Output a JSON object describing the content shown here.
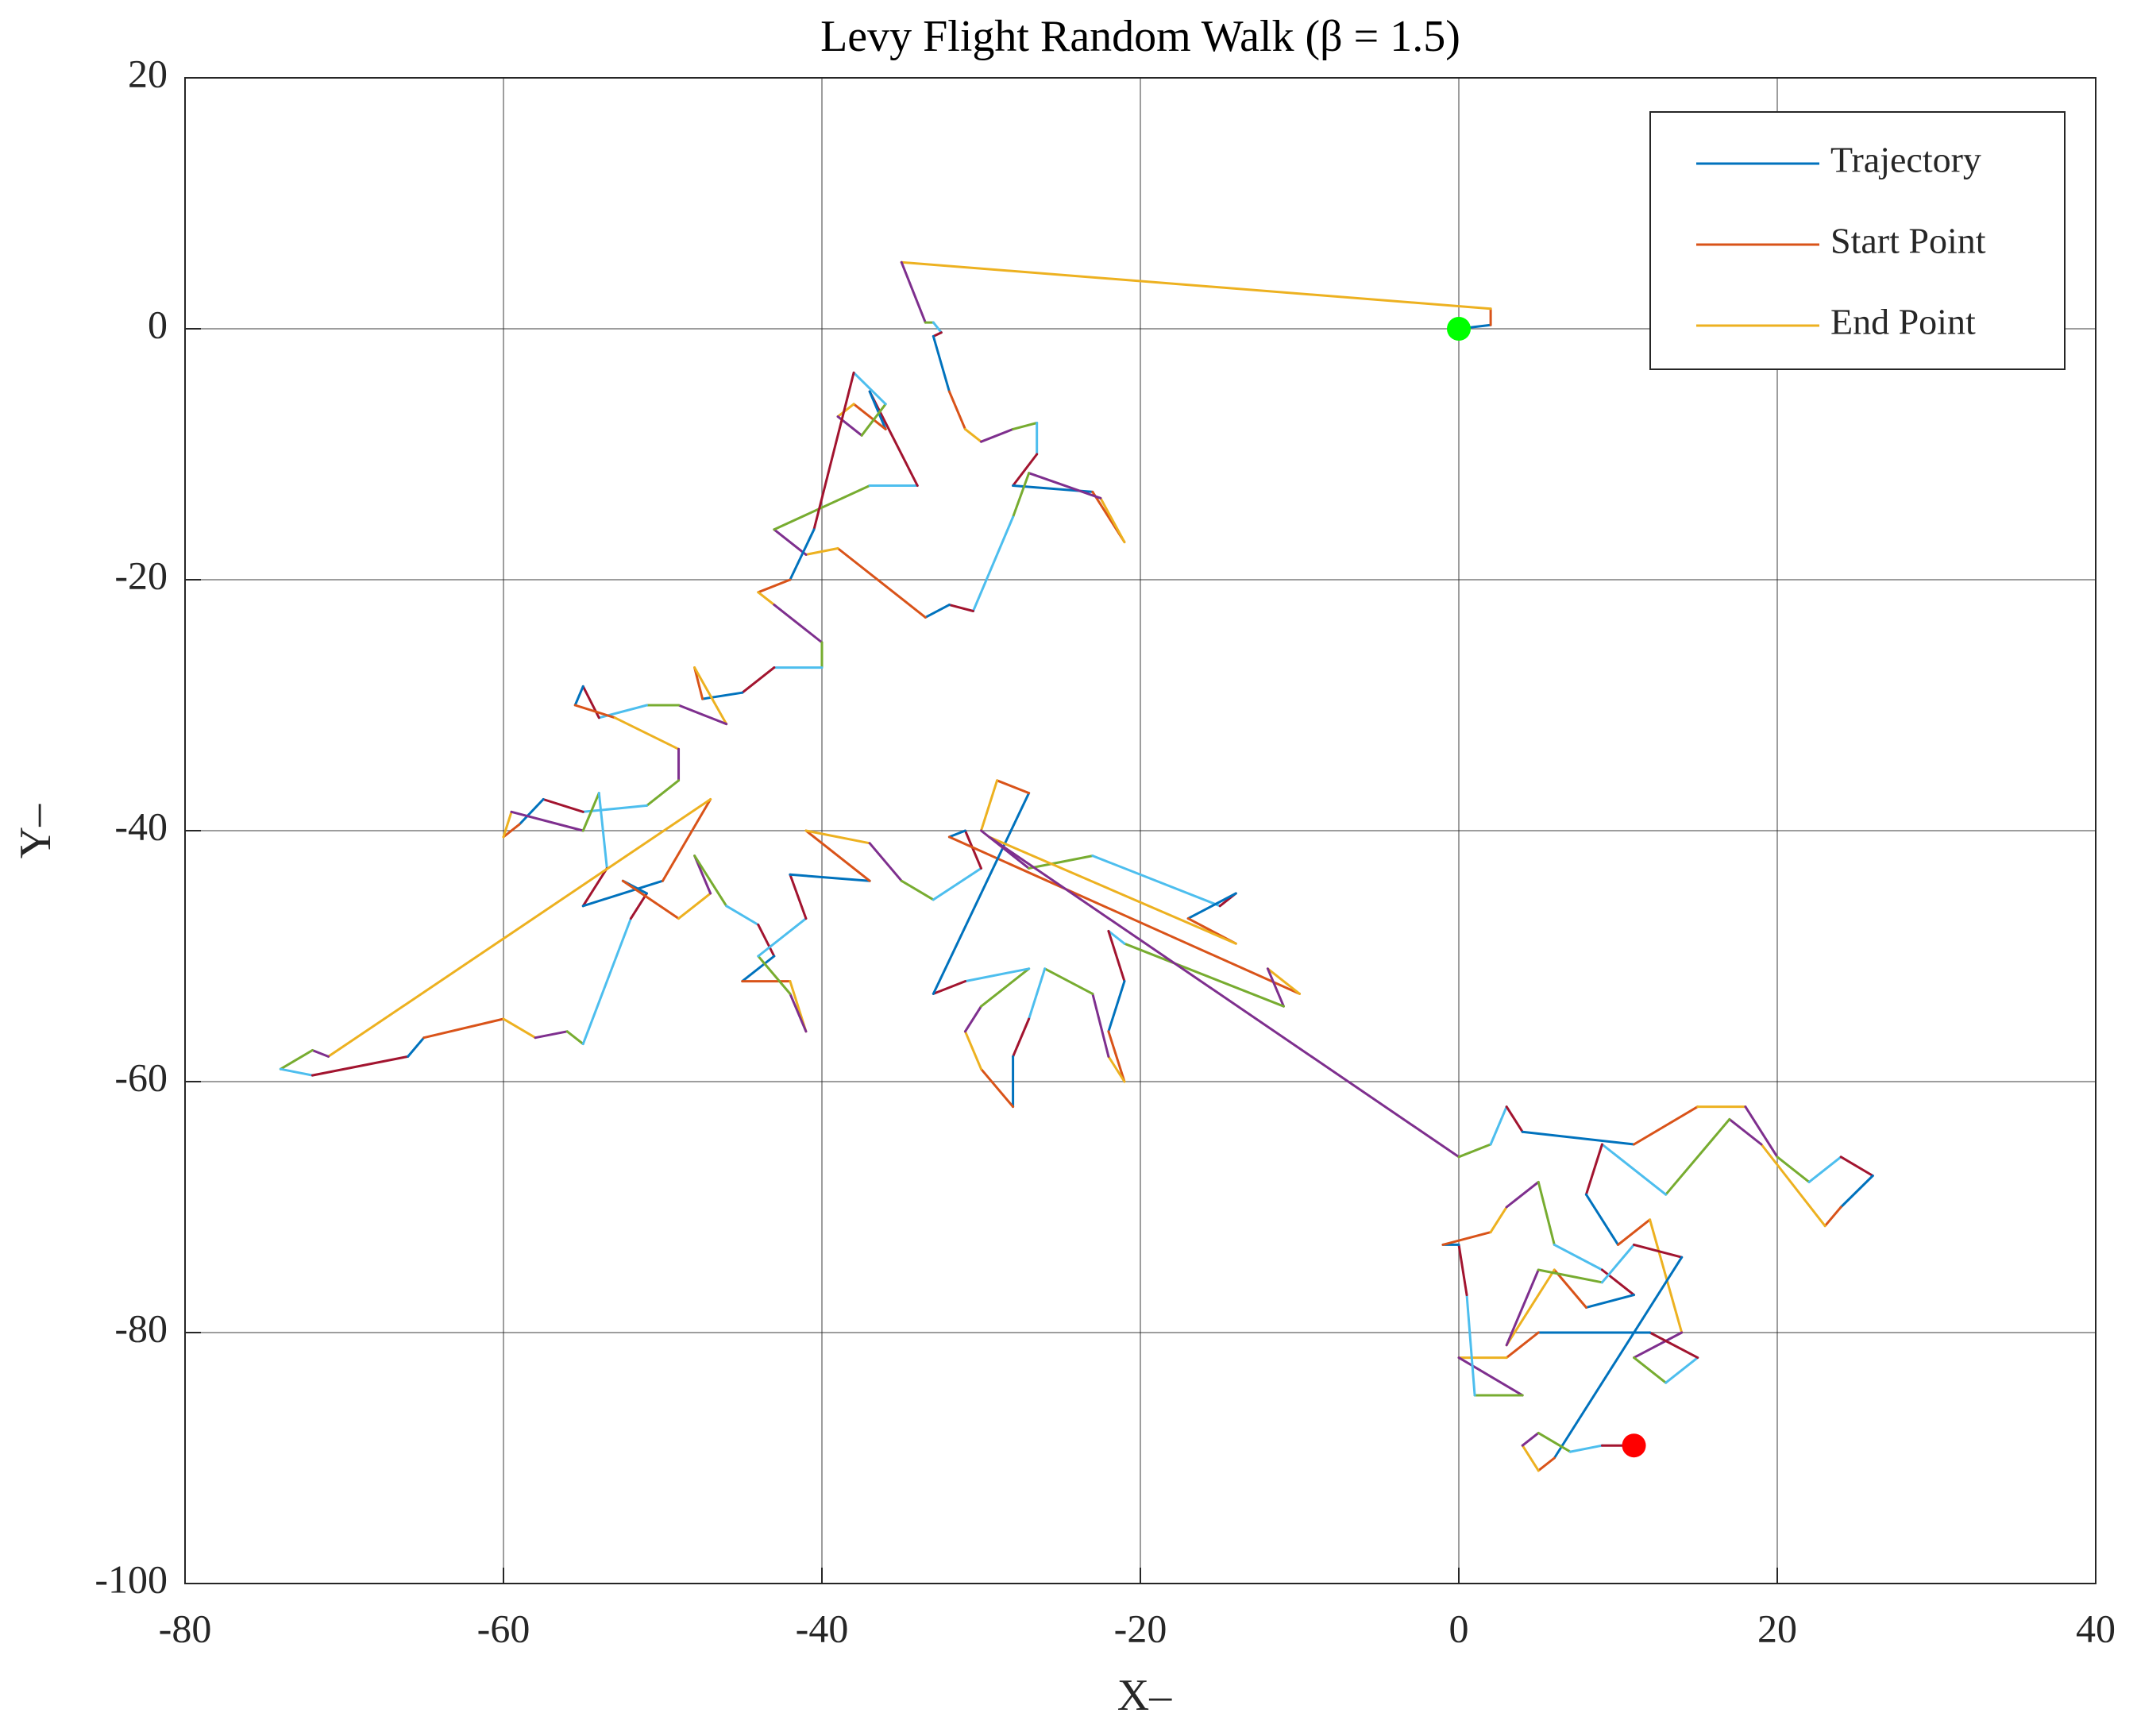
{
  "chart_data": {
    "type": "line",
    "title": "Levy Flight Random Walk (β = 1.5)",
    "xlabel": "X–",
    "ylabel": "Y–",
    "xlim": [
      -80,
      40
    ],
    "xticks": [
      -80,
      -60,
      -40,
      -20,
      0,
      20,
      40
    ],
    "ylim": [
      -100,
      20
    ],
    "yticks": [
      -100,
      -80,
      -60,
      -40,
      -20,
      0,
      20
    ],
    "grid": true,
    "legend_position": "upper right",
    "legend": [
      {
        "name": "Trajectory",
        "color": "#0072BD"
      },
      {
        "name": "Start Point",
        "color": "#D95319"
      },
      {
        "name": "End Point",
        "color": "#EDB120"
      }
    ],
    "segment_colors": [
      "#0072BD",
      "#D95319",
      "#EDB120",
      "#7E2F8E",
      "#77AC30",
      "#4DBEEE",
      "#A2142F"
    ],
    "x": [
      0,
      2,
      2,
      -35,
      -33.5,
      -33,
      -32.5,
      -33,
      -32,
      -31,
      -30,
      -28,
      -26.5,
      -26.5,
      -28,
      -23,
      -21,
      -22.5,
      -27,
      -28,
      -30.5,
      -32,
      -33.5,
      -39,
      -41,
      -43,
      -37,
      -34,
      -37,
      -36,
      -38,
      -39,
      -37.5,
      -36,
      -38,
      -40.5,
      -42,
      -44,
      -43,
      -40,
      -40,
      -43,
      -45,
      -47.5,
      -48,
      -46,
      -49,
      -51,
      -54,
      -55,
      -55.5,
      -53,
      -49,
      -49,
      -51,
      -55,
      -57.5,
      -59,
      -60,
      -59.5,
      -55,
      -54,
      -53.5,
      -55,
      -50,
      -47,
      -71,
      -72,
      -74,
      -72,
      -66,
      -65,
      -60,
      -58,
      -56,
      -55,
      -52,
      -51,
      -52.5,
      -49,
      -47,
      -48,
      -46,
      -44,
      -43,
      -45,
      -42,
      -41,
      -42,
      -44,
      -41,
      -42,
      -37,
      -41,
      -37,
      -35,
      -33,
      -30,
      -31,
      -32,
      -10,
      -12,
      -11,
      -21,
      -22,
      -21,
      -22,
      -21,
      -22,
      -23,
      -26,
      -27,
      -28,
      -28,
      -30,
      -31,
      -30,
      -27,
      -31,
      -33,
      -27,
      -29,
      -30,
      -27,
      -23,
      -15,
      -14,
      -17,
      -14,
      -29.5,
      0,
      2,
      3,
      4,
      11,
      15,
      18,
      20,
      22,
      24,
      26,
      24,
      23,
      19,
      17,
      13,
      9,
      8,
      10,
      12,
      14,
      11,
      13,
      15,
      12,
      5,
      3,
      0,
      4,
      1,
      0.5,
      0,
      -1,
      2,
      3,
      5,
      6,
      9,
      11,
      8,
      6,
      3,
      5,
      9,
      11,
      14,
      6,
      5,
      4,
      5,
      7,
      9,
      11
    ],
    "y": [
      0,
      0.3,
      1.6,
      5.3,
      0.5,
      0.5,
      -0.3,
      -0.6,
      -5,
      -8,
      -9,
      -8,
      -7.5,
      -10,
      -12.5,
      -13,
      -17,
      -13.5,
      -11.5,
      -15,
      -22.5,
      -22,
      -23,
      -17.5,
      -18,
      -16,
      -12.5,
      -12.5,
      -5,
      -8,
      -6,
      -7,
      -8.5,
      -6,
      -3.5,
      -16,
      -20,
      -21,
      -22,
      -25,
      -27,
      -27,
      -29,
      -29.5,
      -27,
      -31.5,
      -30,
      -30,
      -31,
      -28.5,
      -30,
      -31,
      -33.5,
      -36,
      -38,
      -38.5,
      -37.5,
      -39.5,
      -40.5,
      -38.5,
      -40,
      -37,
      -43,
      -46,
      -44,
      -37.5,
      -58,
      -57.5,
      -59,
      -59.5,
      -58,
      -56.5,
      -55,
      -56.5,
      -56,
      -57,
      -47,
      -45,
      -44,
      -47,
      -45,
      -42,
      -46,
      -47.5,
      -50,
      -52,
      -52,
      -56,
      -53,
      -50,
      -47,
      -43.5,
      -44,
      -40,
      -41,
      -44,
      -45.5,
      -43,
      -40,
      -40.5,
      -53,
      -51,
      -54,
      -49,
      -48,
      -52,
      -56,
      -60,
      -58,
      -53,
      -51,
      -55,
      -58,
      -62,
      -59,
      -56,
      -54,
      -51,
      -52,
      -53,
      -37,
      -36,
      -40,
      -43,
      -42,
      -46,
      -45,
      -47,
      -49,
      -40.5,
      -66,
      -65,
      -62,
      -64,
      -65,
      -62,
      -62,
      -66,
      -68,
      -66,
      -67.5,
      -70,
      -71.5,
      -65,
      -63,
      -69,
      -65,
      -69,
      -73,
      -71,
      -80,
      -82,
      -84,
      -82,
      -80,
      -80,
      -82,
      -82,
      -85,
      -85,
      -77,
      -73,
      -73,
      -72,
      -70,
      -68,
      -73,
      -75,
      -77,
      -78,
      -75,
      -81,
      -75,
      -76,
      -73,
      -74,
      -90,
      -91,
      -89,
      -88,
      -89.5,
      -89,
      -89
    ],
    "start_marker": {
      "x": 0,
      "y": 0,
      "color": "#00FF00"
    },
    "end_marker": {
      "x": 11,
      "y": -89,
      "color": "#FF0000"
    }
  }
}
